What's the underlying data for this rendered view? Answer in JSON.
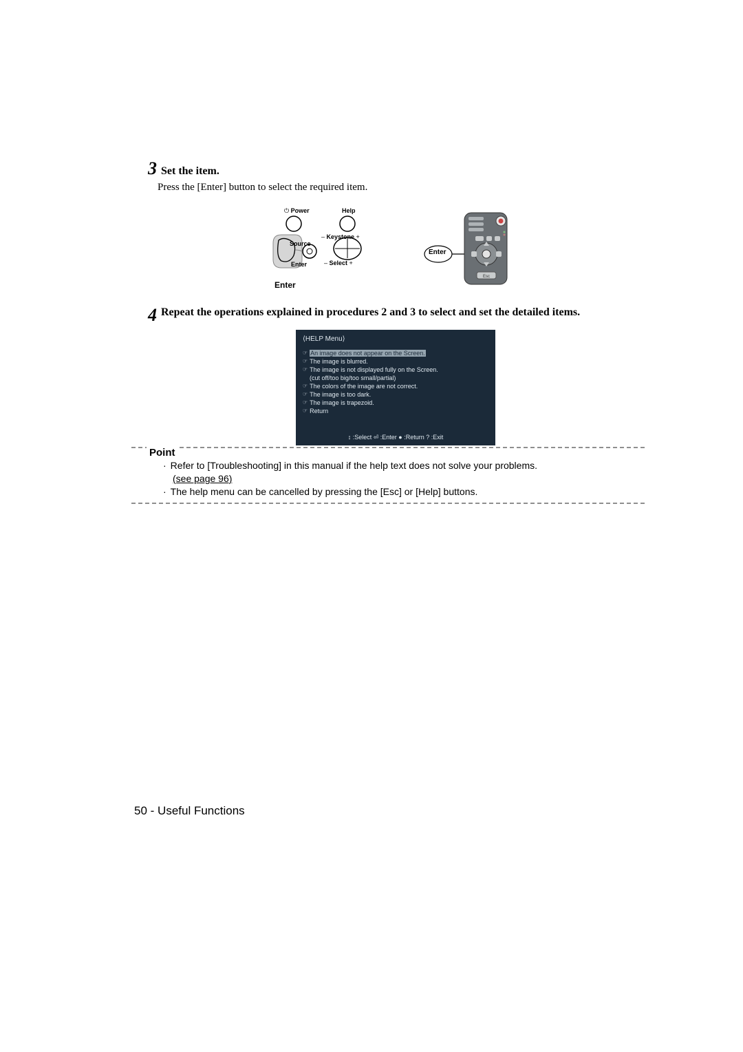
{
  "step3": {
    "num": "3",
    "title": "Set the item.",
    "body": "Press the [Enter] button to select the required item."
  },
  "panel_labels": {
    "power": "Power",
    "help": "Help",
    "source": "Source",
    "keystone": "Keystone",
    "enter": "Enter",
    "select": "Select",
    "bottom_enter": "Enter"
  },
  "remote_labels": {
    "enter": "Enter"
  },
  "step4": {
    "num": "4",
    "title": "Repeat the operations explained in procedures 2 and 3 to select and set the detailed items."
  },
  "help_menu": {
    "title": "⟨HELP Menu⟩",
    "items": [
      {
        "text": "An image does not appear on the Screen.",
        "highlight": true
      },
      {
        "text": "The image is blurred.",
        "highlight": false
      },
      {
        "text": "The image is not displayed fully on the Screen.",
        "highlight": false
      },
      {
        "text": "(cut off/too big/too small/partial)",
        "highlight": false,
        "indent": true,
        "nohand": true
      },
      {
        "text": "The colors of the image are not correct.",
        "highlight": false
      },
      {
        "text": "The image is too dark.",
        "highlight": false
      },
      {
        "text": "The image is trapezoid.",
        "highlight": false
      },
      {
        "text": "Return",
        "highlight": false
      }
    ],
    "footer": "↕ :Select   ⏎ :Enter    ● :Return   ? :Exit",
    "bg_color": "#1b2a39",
    "text_color": "#dfe8ef"
  },
  "point": {
    "label": "Point",
    "lines": [
      "Refer to [Troubleshooting] in this manual if the help text does not solve your problems.",
      "(see page 96)",
      "The help menu can be cancelled by pressing the [Esc] or [Help] buttons."
    ]
  },
  "footer": {
    "page": "50",
    "section": "Useful Functions"
  },
  "colors": {
    "dash": "#8f8f8f",
    "panel_stroke": "#000000",
    "remote_fill": "#5d6266"
  }
}
